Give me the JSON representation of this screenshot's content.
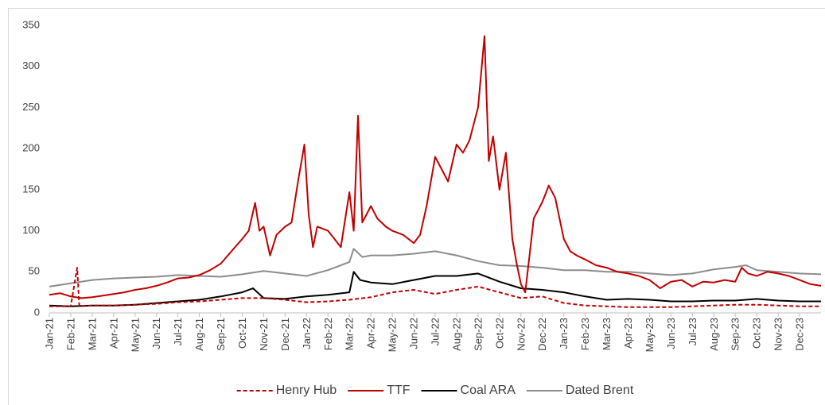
{
  "chart_data": {
    "type": "line",
    "xlim": [
      0,
      36
    ],
    "ylim": [
      0,
      350
    ],
    "yticks": [
      0,
      50,
      100,
      150,
      200,
      250,
      300,
      350
    ],
    "xticks": [
      {
        "value": 0,
        "label": "Jan-21"
      },
      {
        "value": 1,
        "label": "Feb-21"
      },
      {
        "value": 2,
        "label": "Mar-21"
      },
      {
        "value": 3,
        "label": "Apr-21"
      },
      {
        "value": 4,
        "label": "May-21"
      },
      {
        "value": 5,
        "label": "Jun-21"
      },
      {
        "value": 6,
        "label": "Jul-21"
      },
      {
        "value": 7,
        "label": "Aug-21"
      },
      {
        "value": 8,
        "label": "Sep-21"
      },
      {
        "value": 9,
        "label": "Oct-21"
      },
      {
        "value": 10,
        "label": "Nov-21"
      },
      {
        "value": 11,
        "label": "Dec-21"
      },
      {
        "value": 12,
        "label": "Jan-22"
      },
      {
        "value": 13,
        "label": "Feb-22"
      },
      {
        "value": 14,
        "label": "Mar-22"
      },
      {
        "value": 15,
        "label": "Apr-22"
      },
      {
        "value": 16,
        "label": "May-22"
      },
      {
        "value": 17,
        "label": "Jun-22"
      },
      {
        "value": 18,
        "label": "Jul-22"
      },
      {
        "value": 19,
        "label": "Aug-22"
      },
      {
        "value": 20,
        "label": "Sep-22"
      },
      {
        "value": 21,
        "label": "Oct-22"
      },
      {
        "value": 22,
        "label": "Nov-22"
      },
      {
        "value": 23,
        "label": "Dec-22"
      },
      {
        "value": 24,
        "label": "Jan-23"
      },
      {
        "value": 25,
        "label": "Feb-23"
      },
      {
        "value": 26,
        "label": "Mar-23"
      },
      {
        "value": 27,
        "label": "Apr-23"
      },
      {
        "value": 28,
        "label": "May-23"
      },
      {
        "value": 29,
        "label": "Jun-23"
      },
      {
        "value": 30,
        "label": "Jul-23"
      },
      {
        "value": 31,
        "label": "Aug-23"
      },
      {
        "value": 32,
        "label": "Sep-23"
      },
      {
        "value": 33,
        "label": "Oct-23"
      },
      {
        "value": 34,
        "label": "Nov-23"
      },
      {
        "value": 35,
        "label": "Dec-23"
      }
    ],
    "legend": "bottom",
    "series": [
      {
        "name": "Henry Hub",
        "color": "#c00000",
        "dashed": true,
        "x": [
          0,
          1,
          1.3,
          1.4,
          2,
          3,
          4,
          5,
          6,
          7,
          8,
          9,
          10,
          11,
          12,
          13,
          14,
          15,
          16,
          17,
          18,
          19,
          20,
          21,
          22,
          23,
          24,
          25,
          26,
          27,
          28,
          29,
          30,
          31,
          32,
          33,
          34,
          35,
          36
        ],
        "values": [
          8,
          8,
          55,
          8,
          9,
          9,
          10,
          11,
          13,
          14,
          16,
          18,
          18,
          16,
          13,
          14,
          16,
          19,
          25,
          28,
          23,
          28,
          32,
          25,
          18,
          20,
          12,
          9,
          8,
          7,
          7,
          7,
          8,
          9,
          10,
          10,
          9,
          8,
          8
        ]
      },
      {
        "name": "TTF",
        "color": "#c00000",
        "dashed": false,
        "x": [
          0,
          0.5,
          1,
          1.5,
          2,
          2.5,
          3,
          3.5,
          4,
          4.5,
          5,
          5.5,
          6,
          6.5,
          7,
          7.5,
          8,
          8.5,
          9,
          9.3,
          9.6,
          9.8,
          10,
          10.3,
          10.6,
          11,
          11.3,
          11.6,
          11.9,
          12.1,
          12.3,
          12.5,
          13,
          13.3,
          13.6,
          14,
          14.2,
          14.4,
          14.6,
          15,
          15.3,
          15.7,
          16,
          16.5,
          17,
          17.3,
          17.6,
          18,
          18.3,
          18.6,
          19,
          19.3,
          19.6,
          20,
          20.3,
          20.5,
          20.7,
          21,
          21.3,
          21.6,
          21.8,
          22,
          22.2,
          22.4,
          22.6,
          23,
          23.3,
          23.6,
          24,
          24.3,
          24.6,
          25,
          25.5,
          26,
          26.5,
          27,
          27.5,
          28,
          28.5,
          29,
          29.5,
          30,
          30.5,
          31,
          31.5,
          32,
          32.3,
          32.6,
          33,
          33.5,
          34,
          34.5,
          35,
          35.5,
          36
        ],
        "values": [
          22,
          24,
          20,
          18,
          19,
          21,
          23,
          25,
          28,
          30,
          33,
          37,
          42,
          43,
          46,
          52,
          60,
          75,
          90,
          100,
          134,
          100,
          105,
          70,
          95,
          105,
          110,
          160,
          205,
          120,
          80,
          105,
          100,
          90,
          80,
          147,
          100,
          240,
          110,
          130,
          115,
          105,
          100,
          95,
          85,
          95,
          130,
          190,
          175,
          160,
          205,
          195,
          210,
          250,
          337,
          185,
          215,
          150,
          195,
          90,
          60,
          35,
          25,
          70,
          115,
          135,
          155,
          140,
          90,
          75,
          70,
          65,
          58,
          55,
          50,
          48,
          45,
          40,
          30,
          38,
          40,
          32,
          38,
          37,
          40,
          38,
          55,
          48,
          45,
          50,
          48,
          45,
          40,
          35,
          33
        ]
      },
      {
        "name": "Coal ARA",
        "color": "#000000",
        "dashed": false,
        "x": [
          0,
          1,
          2,
          3,
          4,
          5,
          6,
          7,
          8,
          9,
          9.5,
          10,
          11,
          12,
          13,
          14,
          14.2,
          14.5,
          15,
          16,
          17,
          18,
          19,
          20,
          21,
          22,
          23,
          24,
          25,
          26,
          27,
          28,
          29,
          30,
          31,
          32,
          33,
          34,
          35,
          36
        ],
        "values": [
          9,
          8,
          9,
          9,
          10,
          12,
          14,
          16,
          20,
          25,
          30,
          18,
          17,
          20,
          22,
          25,
          50,
          40,
          37,
          35,
          40,
          45,
          45,
          48,
          38,
          30,
          28,
          25,
          20,
          16,
          17,
          16,
          14,
          14,
          15,
          15,
          17,
          15,
          14,
          14
        ]
      },
      {
        "name": "Dated Brent",
        "color": "#8c8c8c",
        "dashed": false,
        "x": [
          0,
          1,
          2,
          3,
          4,
          5,
          6,
          7,
          8,
          9,
          10,
          11,
          12,
          13,
          14,
          14.2,
          14.6,
          15,
          16,
          17,
          18,
          19,
          20,
          21,
          22,
          23,
          24,
          25,
          26,
          27,
          28,
          29,
          30,
          31,
          32,
          32.5,
          33,
          34,
          35,
          36
        ],
        "values": [
          32,
          36,
          40,
          42,
          43,
          44,
          46,
          45,
          44,
          47,
          51,
          48,
          45,
          52,
          62,
          78,
          68,
          70,
          70,
          72,
          75,
          70,
          63,
          58,
          57,
          55,
          52,
          52,
          50,
          50,
          48,
          46,
          48,
          53,
          56,
          58,
          52,
          50,
          48,
          47
        ]
      }
    ]
  }
}
